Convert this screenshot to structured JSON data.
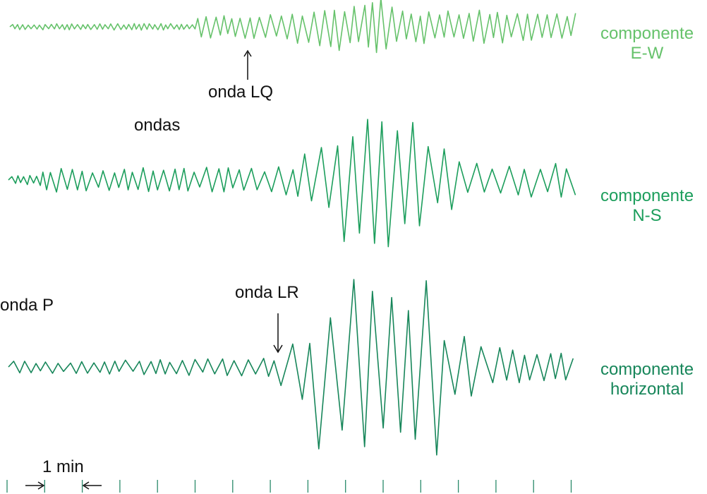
{
  "colors": {
    "ew": "#66c26b",
    "ns": "#1c9e5c",
    "horizontal": "#17865a",
    "text": "#111111",
    "ticks": "#2a8a6a"
  },
  "traces": {
    "ew": {
      "line1": "componente",
      "line2": "E-W"
    },
    "ns": {
      "line1": "componente",
      "line2": "N-S"
    },
    "horizontal": {
      "line1": "componente",
      "line2": "horizontal"
    }
  },
  "annotations": {
    "onda_lq": "onda LQ",
    "ondas": "ondas",
    "onda_p": "onda P",
    "onda_lr": "onda LR",
    "scale": "1 min"
  }
}
